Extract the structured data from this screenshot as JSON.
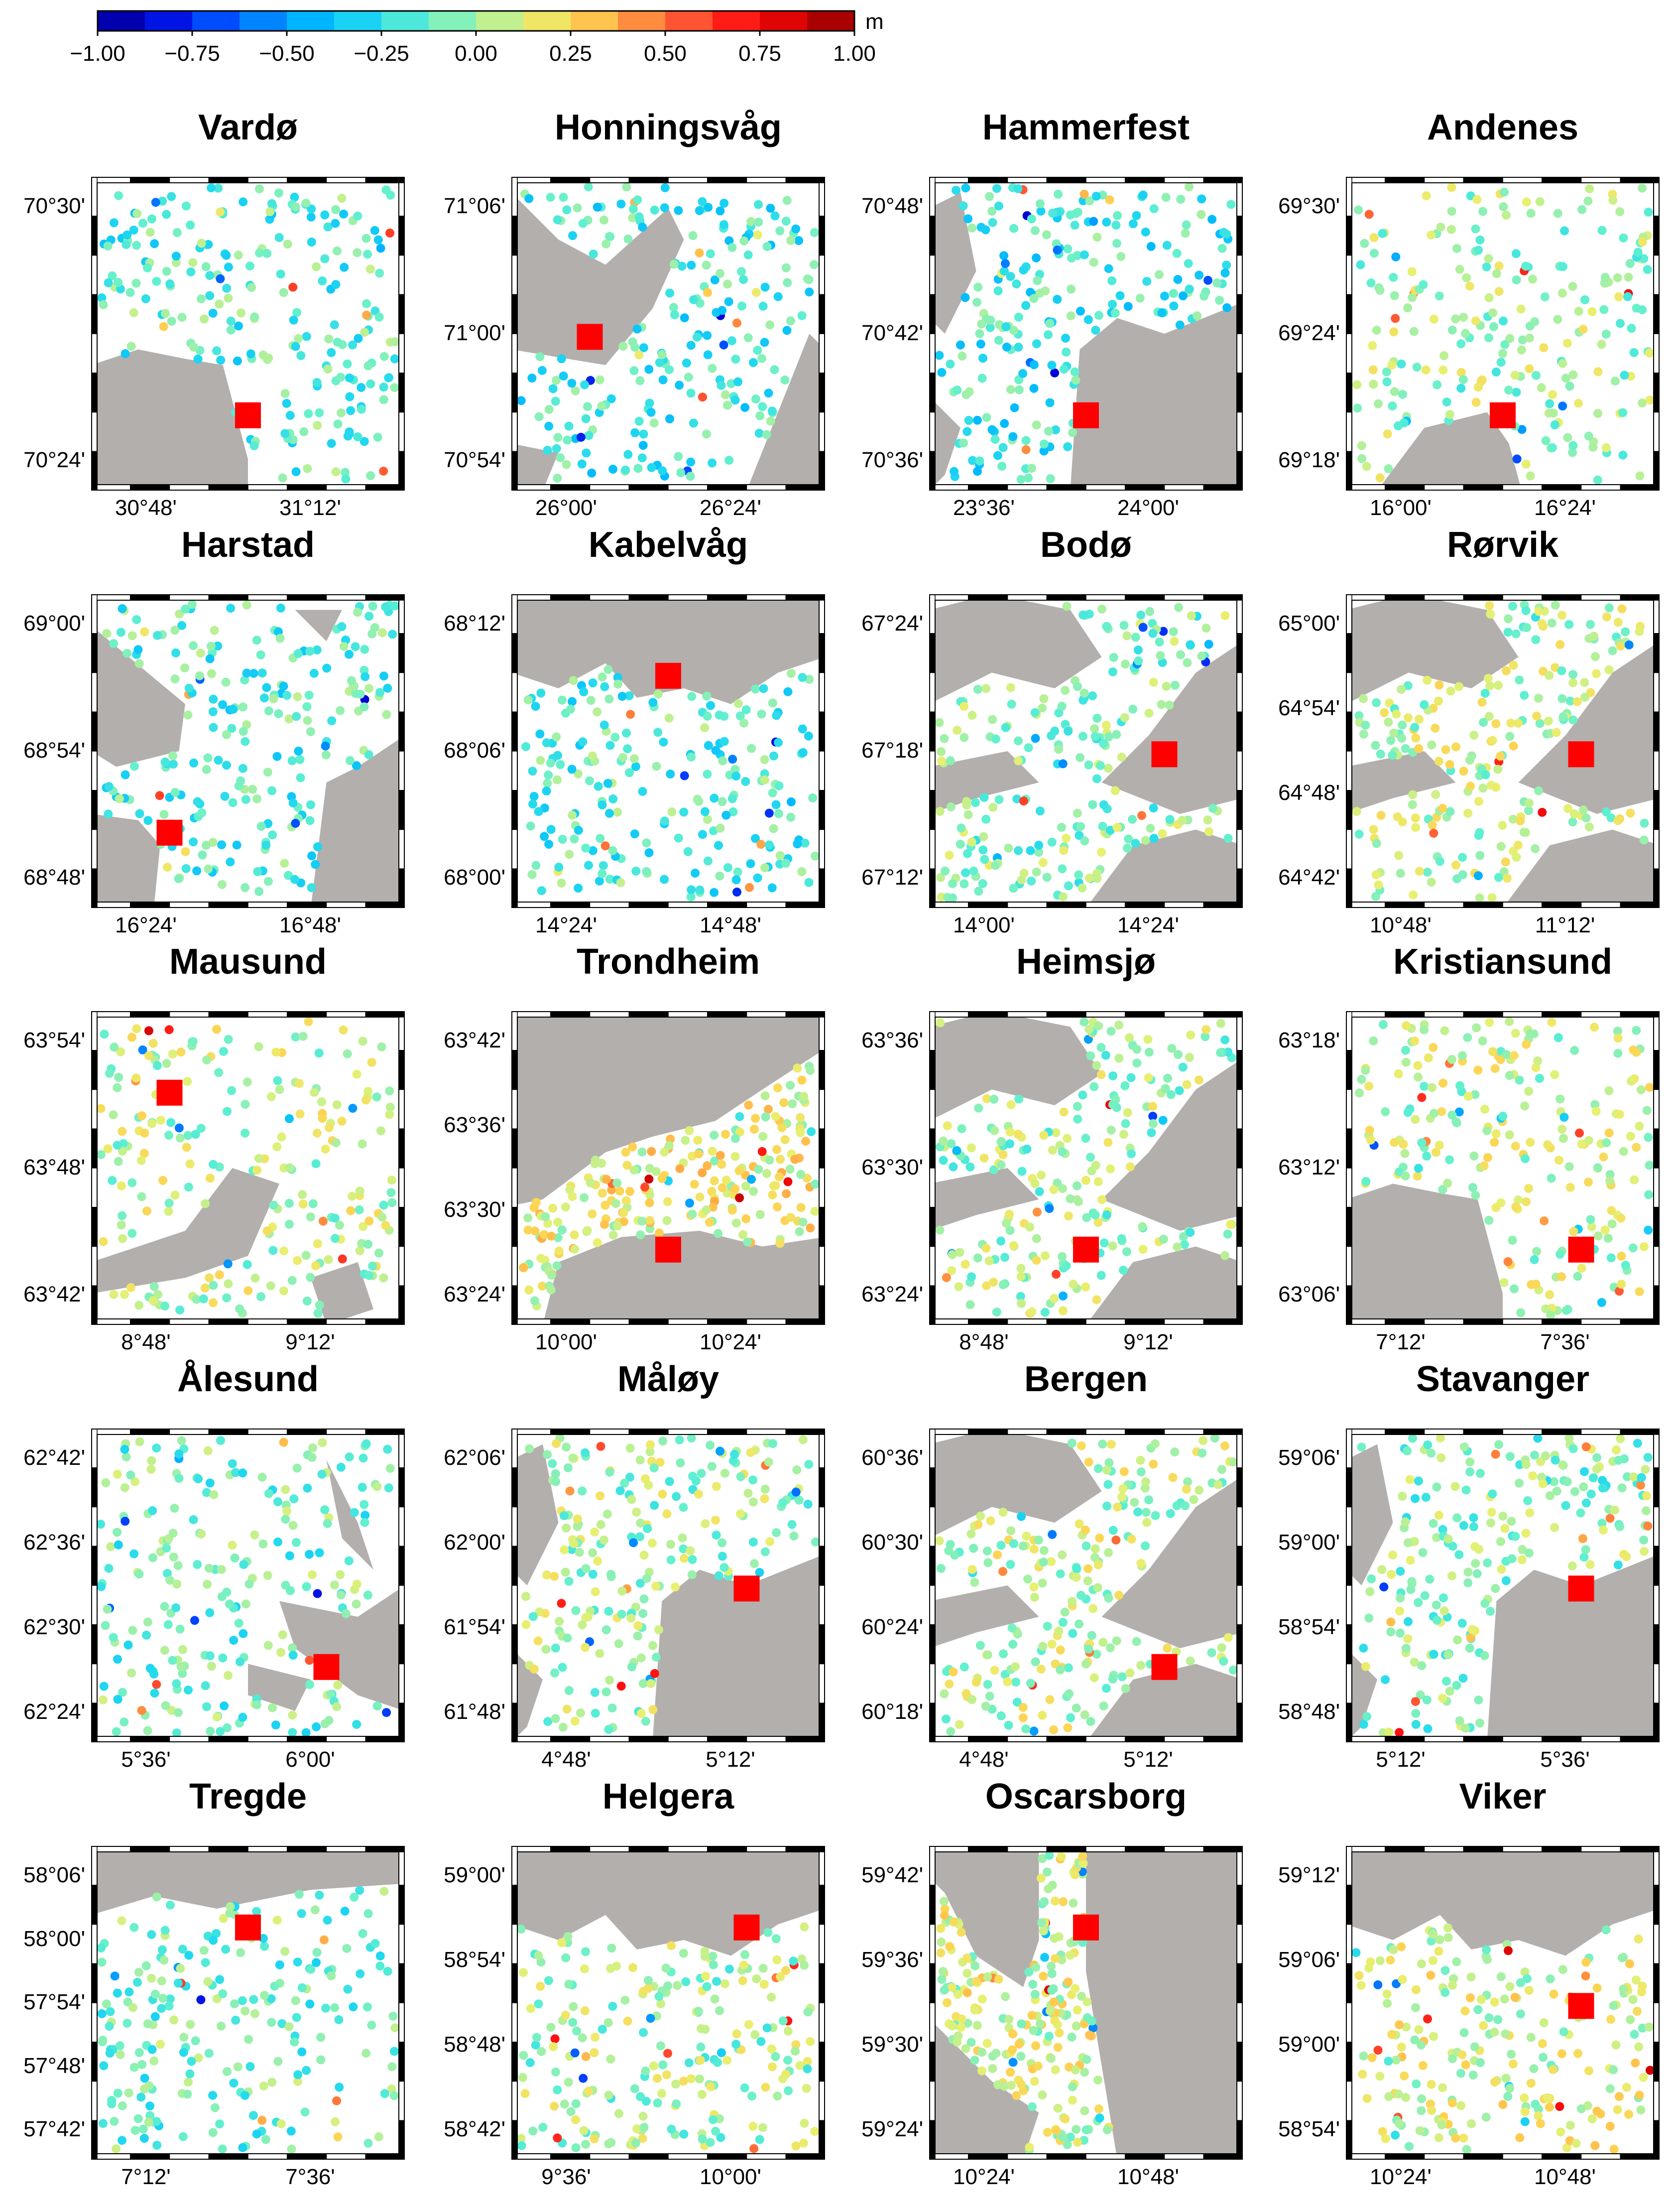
{
  "colorbar": {
    "unit": "m",
    "ticks": [
      "−1.00",
      "−0.75",
      "−0.50",
      "−0.25",
      "0.00",
      "0.25",
      "0.50",
      "0.75",
      "1.00"
    ],
    "min": -1.0,
    "max": 1.0,
    "palette": [
      "#00008f",
      "#0000d6",
      "#0040ff",
      "#0080ff",
      "#00b8ff",
      "#20d8f0",
      "#60f0d0",
      "#a0f0a8",
      "#e8f070",
      "#ffd050",
      "#ff9040",
      "#ff5030",
      "#ff1010",
      "#d00000",
      "#8a0000"
    ]
  },
  "colors": {
    "land": "#b3afac",
    "sea": "#ffffff",
    "station": "#ff0000",
    "frame": "#000000"
  },
  "panels": [
    {
      "name": "Vardø",
      "y_ticks": [
        "70°30'",
        "70°24'"
      ],
      "x_ticks": [
        "30°48'",
        "31°12'"
      ],
      "station": [
        0.5,
        0.76
      ],
      "land": "shore-bottom",
      "level": -0.15
    },
    {
      "name": "Honningsvåg",
      "y_ticks": [
        "71°06'",
        "71°00'",
        "70°54'"
      ],
      "x_ticks": [
        "26°00'",
        "26°24'"
      ],
      "station": [
        0.25,
        0.51
      ],
      "land": "islands-top",
      "level": -0.2
    },
    {
      "name": "Hammerfest",
      "y_ticks": [
        "70°48'",
        "70°42'",
        "70°36'"
      ],
      "x_ticks": [
        "23°36'",
        "24°00'"
      ],
      "station": [
        0.5,
        0.76
      ],
      "land": "shore-right",
      "level": -0.2
    },
    {
      "name": "Andenes",
      "y_ticks": [
        "69°30'",
        "69°24'",
        "69°18'"
      ],
      "x_ticks": [
        "16°00'",
        "16°24'"
      ],
      "station": [
        0.5,
        0.76
      ],
      "land": "tip-bottom",
      "level": 0.0
    },
    {
      "name": "Harstad",
      "y_ticks": [
        "69°00'",
        "68°54'",
        "68°48'"
      ],
      "x_ticks": [
        "16°24'",
        "16°48'"
      ],
      "station": [
        0.25,
        0.76
      ],
      "land": "sides",
      "level": -0.15
    },
    {
      "name": "Kabelvåg",
      "y_ticks": [
        "68°12'",
        "68°06'",
        "68°00'"
      ],
      "x_ticks": [
        "14°24'",
        "14°48'"
      ],
      "station": [
        0.5,
        0.26
      ],
      "land": "top",
      "level": -0.15
    },
    {
      "name": "Bodø",
      "y_ticks": [
        "67°24'",
        "67°18'",
        "67°12'"
      ],
      "x_ticks": [
        "14°00'",
        "14°24'"
      ],
      "station": [
        0.75,
        0.51
      ],
      "land": "fjords",
      "level": -0.05
    },
    {
      "name": "Rørvik",
      "y_ticks": [
        "65°00'",
        "64°54'",
        "64°48'",
        "64°42'"
      ],
      "x_ticks": [
        "10°48'",
        "11°12'"
      ],
      "station": [
        0.75,
        0.51
      ],
      "land": "fjords",
      "level": 0.05
    },
    {
      "name": "Mausund",
      "y_ticks": [
        "63°54'",
        "63°48'",
        "63°42'"
      ],
      "x_ticks": [
        "8°48'",
        "9°12'"
      ],
      "station": [
        0.25,
        0.26
      ],
      "land": "islands-bottom",
      "level": 0.05
    },
    {
      "name": "Trondheim",
      "y_ticks": [
        "63°42'",
        "63°36'",
        "63°30'",
        "63°24'"
      ],
      "x_ticks": [
        "10°00'",
        "10°24'"
      ],
      "station": [
        0.5,
        0.76
      ],
      "land": "fjord-band",
      "level": 0.15
    },
    {
      "name": "Heimsjø",
      "y_ticks": [
        "63°36'",
        "63°30'",
        "63°24'"
      ],
      "x_ticks": [
        "8°48'",
        "9°12'"
      ],
      "station": [
        0.5,
        0.76
      ],
      "land": "fjords",
      "level": 0.0
    },
    {
      "name": "Kristiansund",
      "y_ticks": [
        "63°18'",
        "63°12'",
        "63°06'"
      ],
      "x_ticks": [
        "7°12'",
        "7°36'"
      ],
      "station": [
        0.75,
        0.76
      ],
      "land": "shore-bottom",
      "level": 0.05
    },
    {
      "name": "Ålesund",
      "y_ticks": [
        "62°42'",
        "62°36'",
        "62°30'",
        "62°24'"
      ],
      "x_ticks": [
        "5°36'",
        "6°00'"
      ],
      "station": [
        0.75,
        0.76
      ],
      "land": "islands-right",
      "level": -0.1
    },
    {
      "name": "Måløy",
      "y_ticks": [
        "62°06'",
        "62°00'",
        "61°54'",
        "61°48'"
      ],
      "x_ticks": [
        "4°48'",
        "5°12'"
      ],
      "station": [
        0.75,
        0.51
      ],
      "land": "shore-right",
      "level": 0.0
    },
    {
      "name": "Bergen",
      "y_ticks": [
        "60°36'",
        "60°30'",
        "60°24'",
        "60°18'"
      ],
      "x_ticks": [
        "4°48'",
        "5°12'"
      ],
      "station": [
        0.75,
        0.76
      ],
      "land": "fjords",
      "level": 0.05
    },
    {
      "name": "Stavanger",
      "y_ticks": [
        "59°06'",
        "59°00'",
        "58°54'",
        "58°48'"
      ],
      "x_ticks": [
        "5°12'",
        "5°36'"
      ],
      "station": [
        0.75,
        0.51
      ],
      "land": "shore-right",
      "level": -0.05
    },
    {
      "name": "Tregde",
      "y_ticks": [
        "58°06'",
        "58°00'",
        "57°54'",
        "57°48'",
        "57°42'"
      ],
      "x_ticks": [
        "7°12'",
        "7°36'"
      ],
      "station": [
        0.5,
        0.26
      ],
      "land": "top-strip",
      "level": -0.1
    },
    {
      "name": "Helgera",
      "y_ticks": [
        "59°00'",
        "58°54'",
        "58°48'",
        "58°42'"
      ],
      "x_ticks": [
        "9°36'",
        "10°00'"
      ],
      "station": [
        0.75,
        0.26
      ],
      "land": "top",
      "level": 0.0
    },
    {
      "name": "Oscarsborg",
      "y_ticks": [
        "59°42'",
        "59°36'",
        "59°30'",
        "59°24'"
      ],
      "x_ticks": [
        "10°24'",
        "10°48'"
      ],
      "station": [
        0.5,
        0.26
      ],
      "land": "fjord-narrow",
      "level": 0.1
    },
    {
      "name": "Viker",
      "y_ticks": [
        "59°12'",
        "59°06'",
        "59°00'",
        "58°54'"
      ],
      "x_ticks": [
        "10°24'",
        "10°48'"
      ],
      "station": [
        0.75,
        0.51
      ],
      "land": "top",
      "level": 0.1
    }
  ]
}
